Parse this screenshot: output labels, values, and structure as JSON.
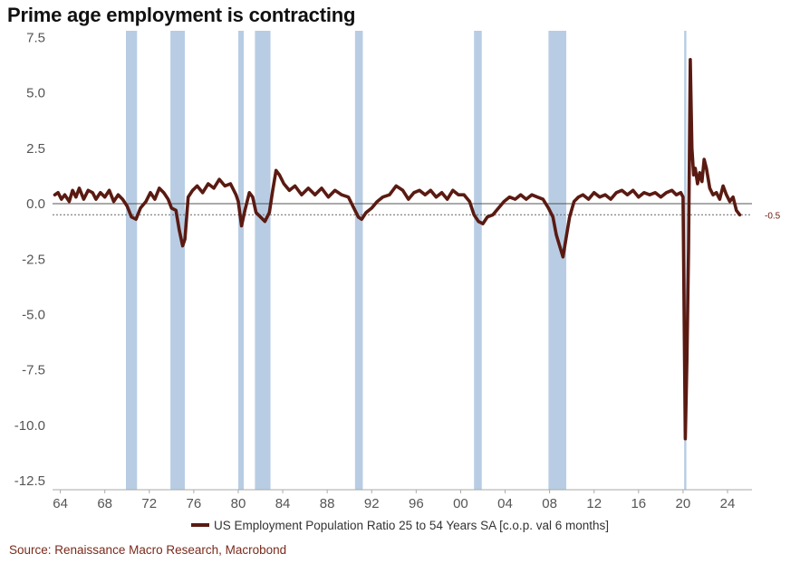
{
  "title": "Prime age employment is contracting",
  "legend_label": "US Employment Population Ratio 25 to 54 Years SA [c.o.p. val 6 months]",
  "source": "Source: Renaissance Macro Research, Macrobond",
  "colors": {
    "line": "#5a1a12",
    "recession": "#b8cde3",
    "grid": "#555555",
    "ref": "#666666"
  },
  "chart_data": {
    "type": "line",
    "title": "Prime age employment is contracting",
    "xlabel": "",
    "ylabel": "",
    "xlim": [
      1963.3,
      2026.2
    ],
    "ylim": [
      -12.9,
      7.8
    ],
    "x_ticks": [
      1964,
      1968,
      1972,
      1976,
      1980,
      1984,
      1988,
      1992,
      1996,
      2000,
      2004,
      2008,
      2012,
      2016,
      2020,
      2024
    ],
    "x_tick_labels": [
      "64",
      "68",
      "72",
      "76",
      "80",
      "84",
      "88",
      "92",
      "96",
      "00",
      "04",
      "08",
      "12",
      "16",
      "20",
      "24"
    ],
    "y_ticks": [
      7.5,
      5.0,
      2.5,
      0.0,
      -2.5,
      -5.0,
      -7.5,
      -10.0,
      -12.5
    ],
    "y_tick_labels": [
      "7.5",
      "5.0",
      "2.5",
      "0.0",
      "-2.5",
      "-5.0",
      "-7.5",
      "-10.0",
      "-12.5"
    ],
    "reference_line": {
      "y": -0.5,
      "label": "-0.5",
      "style": "dotted"
    },
    "recessions": [
      [
        1969.9,
        1970.9
      ],
      [
        1973.9,
        1975.2
      ],
      [
        1980.0,
        1980.5
      ],
      [
        1981.5,
        1982.9
      ],
      [
        1990.5,
        1991.2
      ],
      [
        2001.2,
        2001.9
      ],
      [
        2007.9,
        2009.5
      ],
      [
        2020.1,
        2020.3
      ]
    ],
    "series": [
      {
        "name": "US Employment Population Ratio 25 to 54 Years SA [c.o.p. val 6 months]",
        "x": [
          1963.5,
          1963.8,
          1964.1,
          1964.4,
          1964.8,
          1965.1,
          1965.4,
          1965.7,
          1966.1,
          1966.5,
          1966.9,
          1967.2,
          1967.6,
          1968.0,
          1968.4,
          1968.8,
          1969.2,
          1969.6,
          1970.0,
          1970.4,
          1970.8,
          1971.2,
          1971.7,
          1972.1,
          1972.5,
          1972.9,
          1973.3,
          1973.7,
          1974.0,
          1974.4,
          1974.7,
          1975.0,
          1975.2,
          1975.5,
          1975.9,
          1976.3,
          1976.8,
          1977.3,
          1977.8,
          1978.3,
          1978.8,
          1979.3,
          1979.8,
          1980.0,
          1980.3,
          1980.6,
          1981.0,
          1981.3,
          1981.6,
          1982.0,
          1982.4,
          1982.8,
          1983.1,
          1983.4,
          1983.7,
          1984.1,
          1984.6,
          1985.1,
          1985.7,
          1986.3,
          1986.9,
          1987.5,
          1988.1,
          1988.7,
          1989.3,
          1989.9,
          1990.4,
          1990.8,
          1991.1,
          1991.5,
          1992.0,
          1992.5,
          1993.0,
          1993.6,
          1994.2,
          1994.8,
          1995.3,
          1995.8,
          1996.3,
          1996.8,
          1997.3,
          1997.8,
          1998.3,
          1998.8,
          1999.3,
          1999.8,
          2000.3,
          2000.8,
          2001.2,
          2001.6,
          2002.0,
          2002.4,
          2002.9,
          2003.4,
          2003.9,
          2004.4,
          2004.9,
          2005.4,
          2005.9,
          2006.4,
          2006.9,
          2007.4,
          2007.9,
          2008.3,
          2008.6,
          2008.9,
          2009.2,
          2009.5,
          2009.8,
          2010.2,
          2010.6,
          2011.0,
          2011.5,
          2012.0,
          2012.5,
          2013.0,
          2013.5,
          2014.0,
          2014.5,
          2015.0,
          2015.5,
          2016.0,
          2016.5,
          2017.0,
          2017.5,
          2018.0,
          2018.5,
          2019.0,
          2019.4,
          2019.8,
          2020.0,
          2020.2,
          2020.35,
          2020.5,
          2020.65,
          2020.8,
          2020.95,
          2021.1,
          2021.3,
          2021.5,
          2021.7,
          2021.9,
          2022.1,
          2022.4,
          2022.7,
          2023.0,
          2023.3,
          2023.6,
          2023.9,
          2024.2,
          2024.5,
          2024.8,
          2025.1
        ],
        "values": [
          0.4,
          0.5,
          0.2,
          0.4,
          0.1,
          0.6,
          0.3,
          0.7,
          0.2,
          0.6,
          0.5,
          0.2,
          0.5,
          0.3,
          0.6,
          0.1,
          0.4,
          0.2,
          -0.1,
          -0.6,
          -0.7,
          -0.2,
          0.1,
          0.5,
          0.2,
          0.7,
          0.5,
          0.2,
          -0.2,
          -0.3,
          -1.2,
          -1.9,
          -1.6,
          0.3,
          0.6,
          0.8,
          0.5,
          0.9,
          0.7,
          1.1,
          0.8,
          0.9,
          0.4,
          0.1,
          -1.0,
          -0.3,
          0.5,
          0.3,
          -0.4,
          -0.6,
          -0.8,
          -0.4,
          0.6,
          1.5,
          1.3,
          0.9,
          0.6,
          0.8,
          0.4,
          0.7,
          0.4,
          0.7,
          0.3,
          0.6,
          0.4,
          0.3,
          -0.2,
          -0.6,
          -0.7,
          -0.4,
          -0.2,
          0.1,
          0.3,
          0.4,
          0.8,
          0.6,
          0.2,
          0.5,
          0.6,
          0.4,
          0.6,
          0.3,
          0.5,
          0.2,
          0.6,
          0.4,
          0.4,
          0.1,
          -0.5,
          -0.8,
          -0.9,
          -0.6,
          -0.5,
          -0.2,
          0.1,
          0.3,
          0.2,
          0.4,
          0.2,
          0.4,
          0.3,
          0.2,
          -0.2,
          -0.6,
          -1.4,
          -1.9,
          -2.4,
          -1.5,
          -0.6,
          0.1,
          0.3,
          0.4,
          0.2,
          0.5,
          0.3,
          0.4,
          0.2,
          0.5,
          0.6,
          0.4,
          0.6,
          0.3,
          0.5,
          0.4,
          0.5,
          0.3,
          0.5,
          0.6,
          0.4,
          0.5,
          0.3,
          -10.6,
          -7.0,
          -2.0,
          6.5,
          2.5,
          1.3,
          1.6,
          0.9,
          1.4,
          1.0,
          2.0,
          1.6,
          0.7,
          0.4,
          0.5,
          0.2,
          0.8,
          0.4,
          0.1,
          0.3,
          -0.3,
          -0.5
        ]
      }
    ]
  }
}
